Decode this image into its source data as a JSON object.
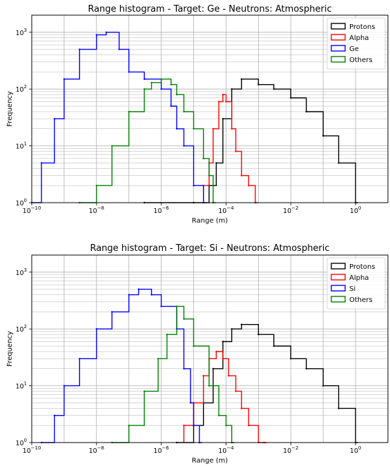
{
  "chart_data": [
    {
      "type": "line",
      "subtype": "step-histogram",
      "title": "Range histogram - Target: Ge - Neutrons: Atmospheric",
      "xlabel": "Range (m)",
      "ylabel": "Frequency",
      "xscale": "log",
      "yscale": "log",
      "xlim": [
        1e-10,
        10
      ],
      "ylim": [
        1,
        2000
      ],
      "x_ticks": [
        {
          "base": "10",
          "exp": "−10",
          "value": 1e-10
        },
        {
          "base": "10",
          "exp": "−8",
          "value": 1e-08
        },
        {
          "base": "10",
          "exp": "−6",
          "value": 1e-06
        },
        {
          "base": "10",
          "exp": "−4",
          "value": 0.0001
        },
        {
          "base": "10",
          "exp": "−2",
          "value": 0.01
        },
        {
          "base": "10",
          "exp": "0",
          "value": 1
        }
      ],
      "y_ticks": [
        {
          "base": "10",
          "exp": "0",
          "value": 1
        },
        {
          "base": "10",
          "exp": "1",
          "value": 10
        },
        {
          "base": "10",
          "exp": "2",
          "value": 100
        },
        {
          "base": "10",
          "exp": "3",
          "value": 1000
        }
      ],
      "grid": true,
      "legend_position": "top-right",
      "series": [
        {
          "name": "Protons",
          "color": "#000000",
          "x": [
            3e-07,
            1e-05,
            3e-05,
            5e-05,
            8e-05,
            0.00015,
            0.0003,
            0.001,
            0.003,
            0.01,
            0.03,
            0.1,
            0.3,
            1
          ],
          "y": [
            1,
            1,
            2,
            5,
            30,
            100,
            150,
            120,
            100,
            70,
            40,
            15,
            5,
            1
          ]
        },
        {
          "name": "Alpha",
          "color": "#ff0000",
          "x": [
            2e-05,
            3e-05,
            4e-05,
            6e-05,
            8e-05,
            0.0001,
            0.00015,
            0.0002,
            0.0003,
            0.0005,
            0.0008
          ],
          "y": [
            2,
            5,
            20,
            60,
            80,
            60,
            20,
            8,
            3,
            2,
            1
          ]
        },
        {
          "name": "Ge",
          "color": "#0000ff",
          "x": [
            1e-10,
            2e-10,
            5e-10,
            1e-09,
            3e-09,
            1e-08,
            2e-08,
            5e-08,
            1e-07,
            3e-07,
            1e-06,
            2e-06,
            3e-06,
            5e-06,
            1e-05,
            2e-05
          ],
          "y": [
            1,
            5,
            30,
            150,
            500,
            900,
            1000,
            500,
            200,
            150,
            100,
            50,
            20,
            10,
            2,
            1
          ]
        },
        {
          "name": "Others",
          "color": "#008000",
          "x": [
            3e-09,
            1e-08,
            3e-08,
            1e-07,
            3e-07,
            5e-07,
            1e-06,
            2e-06,
            3e-06,
            5e-06,
            1e-05,
            2e-05,
            3e-05,
            4e-05
          ],
          "y": [
            1,
            2,
            10,
            40,
            100,
            130,
            150,
            120,
            80,
            40,
            20,
            6,
            3,
            1
          ]
        }
      ],
      "legend": [
        "Protons",
        "Alpha",
        "Ge",
        "Others"
      ]
    },
    {
      "type": "line",
      "subtype": "step-histogram",
      "title": "Range histogram - Target: Si - Neutrons: Atmospheric",
      "xlabel": "Range (m)",
      "ylabel": "Frequency",
      "xscale": "log",
      "yscale": "log",
      "xlim": [
        1e-10,
        10
      ],
      "ylim": [
        1,
        2000
      ],
      "x_ticks": [
        {
          "base": "10",
          "exp": "−10",
          "value": 1e-10
        },
        {
          "base": "10",
          "exp": "−8",
          "value": 1e-08
        },
        {
          "base": "10",
          "exp": "−6",
          "value": 1e-06
        },
        {
          "base": "10",
          "exp": "−4",
          "value": 0.0001
        },
        {
          "base": "10",
          "exp": "−2",
          "value": 0.01
        },
        {
          "base": "10",
          "exp": "0",
          "value": 1
        }
      ],
      "y_ticks": [
        {
          "base": "10",
          "exp": "0",
          "value": 1
        },
        {
          "base": "10",
          "exp": "1",
          "value": 10
        },
        {
          "base": "10",
          "exp": "2",
          "value": 100
        },
        {
          "base": "10",
          "exp": "3",
          "value": 1000
        }
      ],
      "grid": true,
      "legend_position": "top-right",
      "series": [
        {
          "name": "Protons",
          "color": "#000000",
          "x": [
            3e-06,
            1e-05,
            2e-05,
            4e-05,
            8e-05,
            0.00015,
            0.0003,
            0.001,
            0.003,
            0.01,
            0.03,
            0.1,
            0.3,
            1
          ],
          "y": [
            1,
            2,
            5,
            20,
            60,
            100,
            120,
            80,
            50,
            30,
            20,
            10,
            4,
            1
          ]
        },
        {
          "name": "Alpha",
          "color": "#ff0000",
          "x": [
            5e-06,
            1e-05,
            2e-05,
            3e-05,
            5e-05,
            8e-05,
            0.00012,
            0.0002,
            0.0003,
            0.0005,
            0.001,
            0.0015
          ],
          "y": [
            2,
            5,
            15,
            30,
            40,
            30,
            15,
            8,
            4,
            2,
            1,
            1
          ]
        },
        {
          "name": "Si",
          "color": "#0000ff",
          "x": [
            2e-10,
            5e-10,
            1e-09,
            3e-09,
            1e-08,
            3e-08,
            1e-07,
            2e-07,
            5e-07,
            1e-06,
            3e-06,
            5e-06,
            8e-06,
            1e-05,
            1.5e-05
          ],
          "y": [
            1,
            3,
            10,
            30,
            100,
            200,
            400,
            500,
            400,
            250,
            100,
            20,
            5,
            2,
            1
          ]
        },
        {
          "name": "Others",
          "color": "#008000",
          "x": [
            3e-08,
            1e-07,
            3e-07,
            8e-07,
            1.5e-06,
            3e-06,
            5e-06,
            1e-05,
            3e-05,
            6e-05,
            0.0001,
            0.00015
          ],
          "y": [
            1,
            2,
            8,
            30,
            80,
            250,
            150,
            50,
            10,
            3,
            2,
            1
          ]
        }
      ],
      "legend": [
        "Protons",
        "Alpha",
        "Si",
        "Others"
      ]
    }
  ]
}
